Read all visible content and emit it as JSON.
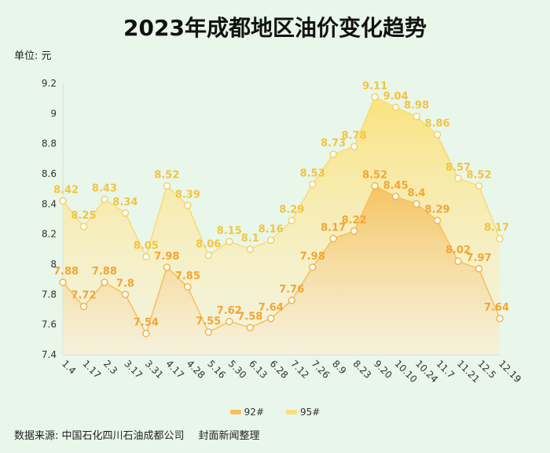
{
  "title": "2023年成都地区油价变化趋势",
  "unit": "单位: 元",
  "source": {
    "left": "数据来源: 中国石化四川石油成都公司",
    "right": "封面新闻整理"
  },
  "colors": {
    "s92_label": "#f3a533",
    "s95_label": "#f2c53d",
    "s92_fill": "#f7c564",
    "s95_fill": "#fbe07d"
  },
  "chart_data": {
    "type": "area",
    "categories": [
      "1.4",
      "1.17",
      "2.3",
      "3.17",
      "3.31",
      "4.17",
      "4.28",
      "5.16",
      "5.30",
      "6.13",
      "6.28",
      "7.12",
      "7.26",
      "8.9",
      "8.23",
      "9.20",
      "10.10",
      "10.24",
      "11.7",
      "11.21",
      "12.5",
      "12.19"
    ],
    "series": [
      {
        "name": "92#",
        "values": [
          7.88,
          7.72,
          7.88,
          7.8,
          7.54,
          7.98,
          7.85,
          7.55,
          7.62,
          7.58,
          7.64,
          7.76,
          7.98,
          8.17,
          8.22,
          8.52,
          8.45,
          8.4,
          8.29,
          8.02,
          7.97,
          7.64
        ]
      },
      {
        "name": "95#",
        "values": [
          8.42,
          8.25,
          8.43,
          8.34,
          8.05,
          8.52,
          8.39,
          8.06,
          8.15,
          8.1,
          8.16,
          8.29,
          8.53,
          8.73,
          8.78,
          9.11,
          9.04,
          8.98,
          8.86,
          8.57,
          8.52,
          8.17
        ]
      }
    ],
    "yticks": [
      "7.4",
      "7.6",
      "7.8",
      "8",
      "8.2",
      "8.4",
      "8.6",
      "8.8",
      "9",
      "9.2"
    ],
    "ylim": [
      7.4,
      9.2
    ],
    "legend_position": "bottom-center",
    "grid": false
  }
}
